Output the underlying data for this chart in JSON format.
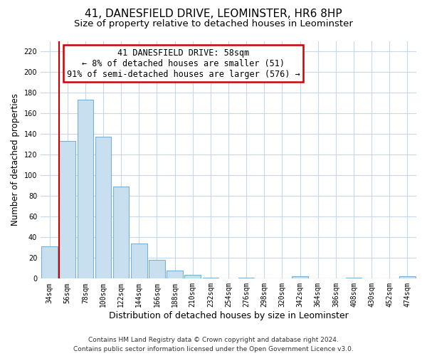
{
  "title": "41, DANESFIELD DRIVE, LEOMINSTER, HR6 8HP",
  "subtitle": "Size of property relative to detached houses in Leominster",
  "xlabel": "Distribution of detached houses by size in Leominster",
  "ylabel": "Number of detached properties",
  "bar_labels": [
    "34sqm",
    "56sqm",
    "78sqm",
    "100sqm",
    "122sqm",
    "144sqm",
    "166sqm",
    "188sqm",
    "210sqm",
    "232sqm",
    "254sqm",
    "276sqm",
    "298sqm",
    "320sqm",
    "342sqm",
    "364sqm",
    "386sqm",
    "408sqm",
    "430sqm",
    "452sqm",
    "474sqm"
  ],
  "bar_values": [
    31,
    133,
    173,
    137,
    89,
    34,
    18,
    8,
    4,
    1,
    0,
    1,
    0,
    0,
    2,
    0,
    0,
    1,
    0,
    0,
    2
  ],
  "bar_color": "#c8dff0",
  "bar_edge_color": "#7ab0d4",
  "vline_color": "#cc0000",
  "ylim": [
    0,
    230
  ],
  "yticks": [
    0,
    20,
    40,
    60,
    80,
    100,
    120,
    140,
    160,
    180,
    200,
    220
  ],
  "annotation_title": "41 DANESFIELD DRIVE: 58sqm",
  "annotation_line1": "← 8% of detached houses are smaller (51)",
  "annotation_line2": "91% of semi-detached houses are larger (576) →",
  "annotation_box_color": "#ffffff",
  "annotation_box_edge": "#cc0000",
  "footer_line1": "Contains HM Land Registry data © Crown copyright and database right 2024.",
  "footer_line2": "Contains public sector information licensed under the Open Government Licence v3.0.",
  "title_fontsize": 11,
  "subtitle_fontsize": 9.5,
  "xlabel_fontsize": 9,
  "ylabel_fontsize": 8.5,
  "tick_fontsize": 7,
  "annotation_fontsize": 8.5,
  "footer_fontsize": 6.5,
  "grid_color": "#c8d8e8",
  "background_color": "#ffffff"
}
